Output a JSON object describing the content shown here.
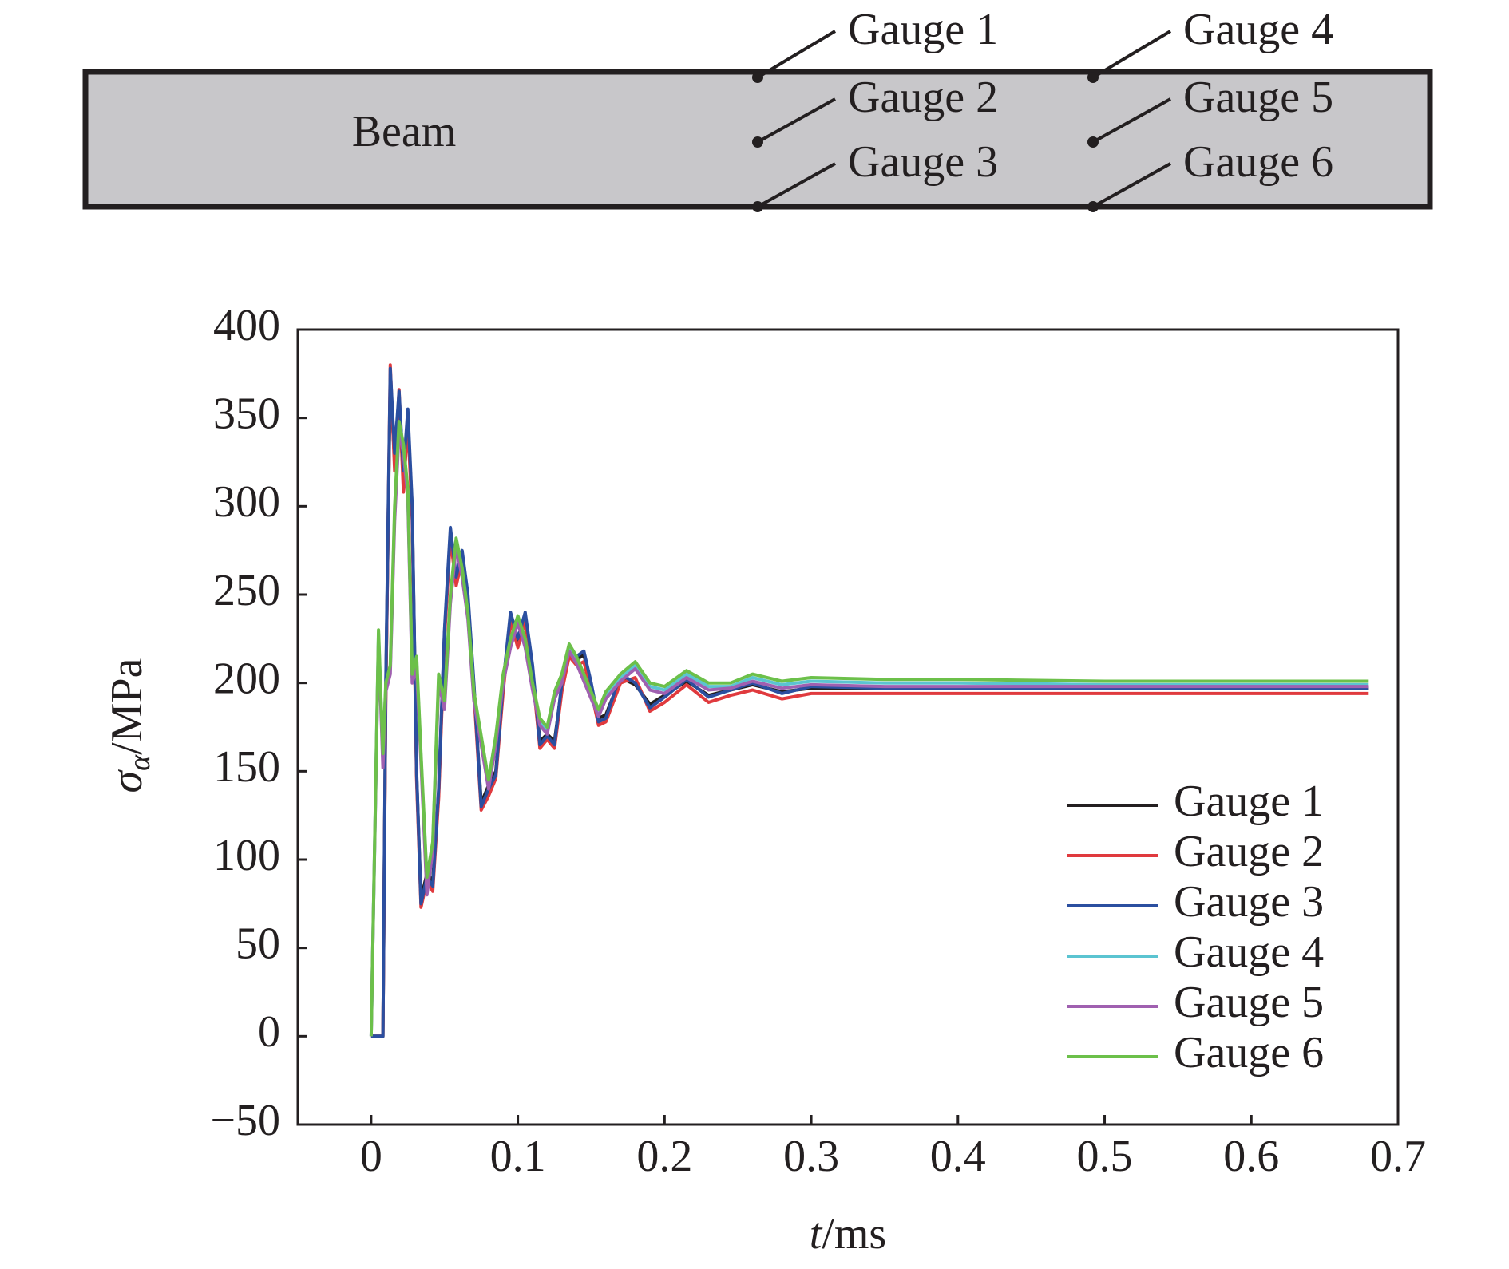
{
  "diagram": {
    "label": "Beam",
    "gauges": [
      "Gauge 1",
      "Gauge 2",
      "Gauge 3",
      "Gauge 4",
      "Gauge 5",
      "Gauge 6"
    ]
  },
  "chart_data": {
    "type": "line",
    "xlabel": {
      "symbol": "t",
      "unit": "/ms"
    },
    "ylabel": {
      "symbol": "σ",
      "subscript": "α",
      "unit": "/MPa"
    },
    "xlim": [
      -0.05,
      0.7
    ],
    "xticks": [
      0,
      0.1,
      0.2,
      0.3,
      0.4,
      0.5,
      0.6,
      0.7
    ],
    "ylim": [
      -50,
      400
    ],
    "yticks": [
      {
        "value": -50,
        "label": "−50"
      },
      0,
      50,
      100,
      150,
      200,
      250,
      300,
      350,
      400
    ],
    "grid": false,
    "legend": "lower right",
    "x": [
      0,
      0.005,
      0.008,
      0.01,
      0.013,
      0.016,
      0.019,
      0.022,
      0.025,
      0.028,
      0.031,
      0.034,
      0.038,
      0.042,
      0.046,
      0.05,
      0.054,
      0.058,
      0.062,
      0.066,
      0.07,
      0.075,
      0.08,
      0.085,
      0.09,
      0.095,
      0.1,
      0.105,
      0.11,
      0.115,
      0.12,
      0.125,
      0.13,
      0.135,
      0.14,
      0.145,
      0.15,
      0.155,
      0.16,
      0.17,
      0.18,
      0.19,
      0.2,
      0.215,
      0.23,
      0.245,
      0.26,
      0.28,
      0.3,
      0.35,
      0.4,
      0.5,
      0.6,
      0.68
    ],
    "series": [
      {
        "name": "Gauge 1",
        "color": "#231f20",
        "values": [
          0,
          0,
          0,
          195,
          372,
          325,
          360,
          315,
          350,
          298,
          148,
          78,
          92,
          88,
          138,
          228,
          284,
          258,
          272,
          248,
          198,
          132,
          142,
          150,
          198,
          237,
          223,
          237,
          208,
          167,
          171,
          167,
          198,
          218,
          213,
          216,
          198,
          180,
          182,
          203,
          199,
          188,
          193,
          201,
          193,
          196,
          199,
          195,
          197,
          197,
          197,
          197,
          197,
          197
        ]
      },
      {
        "name": "Gauge 2",
        "color": "#e03a3e",
        "values": [
          0,
          0,
          0,
          190,
          380,
          320,
          366,
          308,
          348,
          292,
          145,
          73,
          88,
          82,
          135,
          225,
          282,
          255,
          270,
          245,
          195,
          128,
          136,
          146,
          195,
          235,
          220,
          235,
          205,
          163,
          168,
          163,
          195,
          215,
          210,
          212,
          195,
          176,
          178,
          200,
          203,
          184,
          189,
          199,
          189,
          193,
          196,
          191,
          194,
          194,
          194,
          194,
          194,
          194
        ]
      },
      {
        "name": "Gauge 3",
        "color": "#2b4fa0",
        "values": [
          0,
          0,
          0,
          200,
          378,
          330,
          365,
          320,
          355,
          300,
          150,
          75,
          90,
          85,
          140,
          230,
          288,
          260,
          275,
          250,
          200,
          130,
          140,
          148,
          200,
          240,
          225,
          240,
          210,
          165,
          170,
          165,
          200,
          220,
          215,
          218,
          200,
          178,
          180,
          205,
          200,
          186,
          192,
          202,
          192,
          196,
          200,
          194,
          198,
          197,
          197,
          197,
          197,
          197
        ]
      },
      {
        "name": "Gauge 4",
        "color": "#5bc4d1",
        "values": [
          0,
          228,
          158,
          198,
          208,
          296,
          345,
          332,
          308,
          203,
          212,
          158,
          88,
          108,
          202,
          188,
          248,
          279,
          262,
          238,
          193,
          168,
          143,
          168,
          203,
          223,
          236,
          223,
          198,
          178,
          173,
          193,
          203,
          220,
          213,
          203,
          193,
          183,
          193,
          203,
          210,
          198,
          196,
          205,
          198,
          198,
          203,
          199,
          201,
          200,
          200,
          199,
          199,
          199
        ]
      },
      {
        "name": "Gauge 5",
        "color": "#a060b0",
        "values": [
          0,
          225,
          152,
          195,
          205,
          292,
          342,
          330,
          305,
          200,
          208,
          155,
          80,
          105,
          200,
          185,
          245,
          277,
          260,
          236,
          190,
          165,
          140,
          165,
          200,
          220,
          234,
          220,
          196,
          176,
          171,
          191,
          200,
          218,
          211,
          201,
          191,
          181,
          191,
          201,
          208,
          196,
          194,
          203,
          196,
          197,
          201,
          197,
          199,
          198,
          198,
          198,
          198,
          198
        ]
      },
      {
        "name": "Gauge 6",
        "color": "#6cc04a",
        "values": [
          0,
          230,
          160,
          200,
          210,
          300,
          348,
          335,
          310,
          205,
          215,
          160,
          90,
          110,
          205,
          190,
          250,
          282,
          265,
          240,
          195,
          170,
          145,
          170,
          205,
          225,
          238,
          225,
          200,
          180,
          175,
          195,
          205,
          222,
          215,
          205,
          195,
          185,
          195,
          205,
          212,
          200,
          198,
          207,
          200,
          200,
          205,
          201,
          203,
          202,
          202,
          201,
          201,
          201
        ]
      }
    ]
  }
}
